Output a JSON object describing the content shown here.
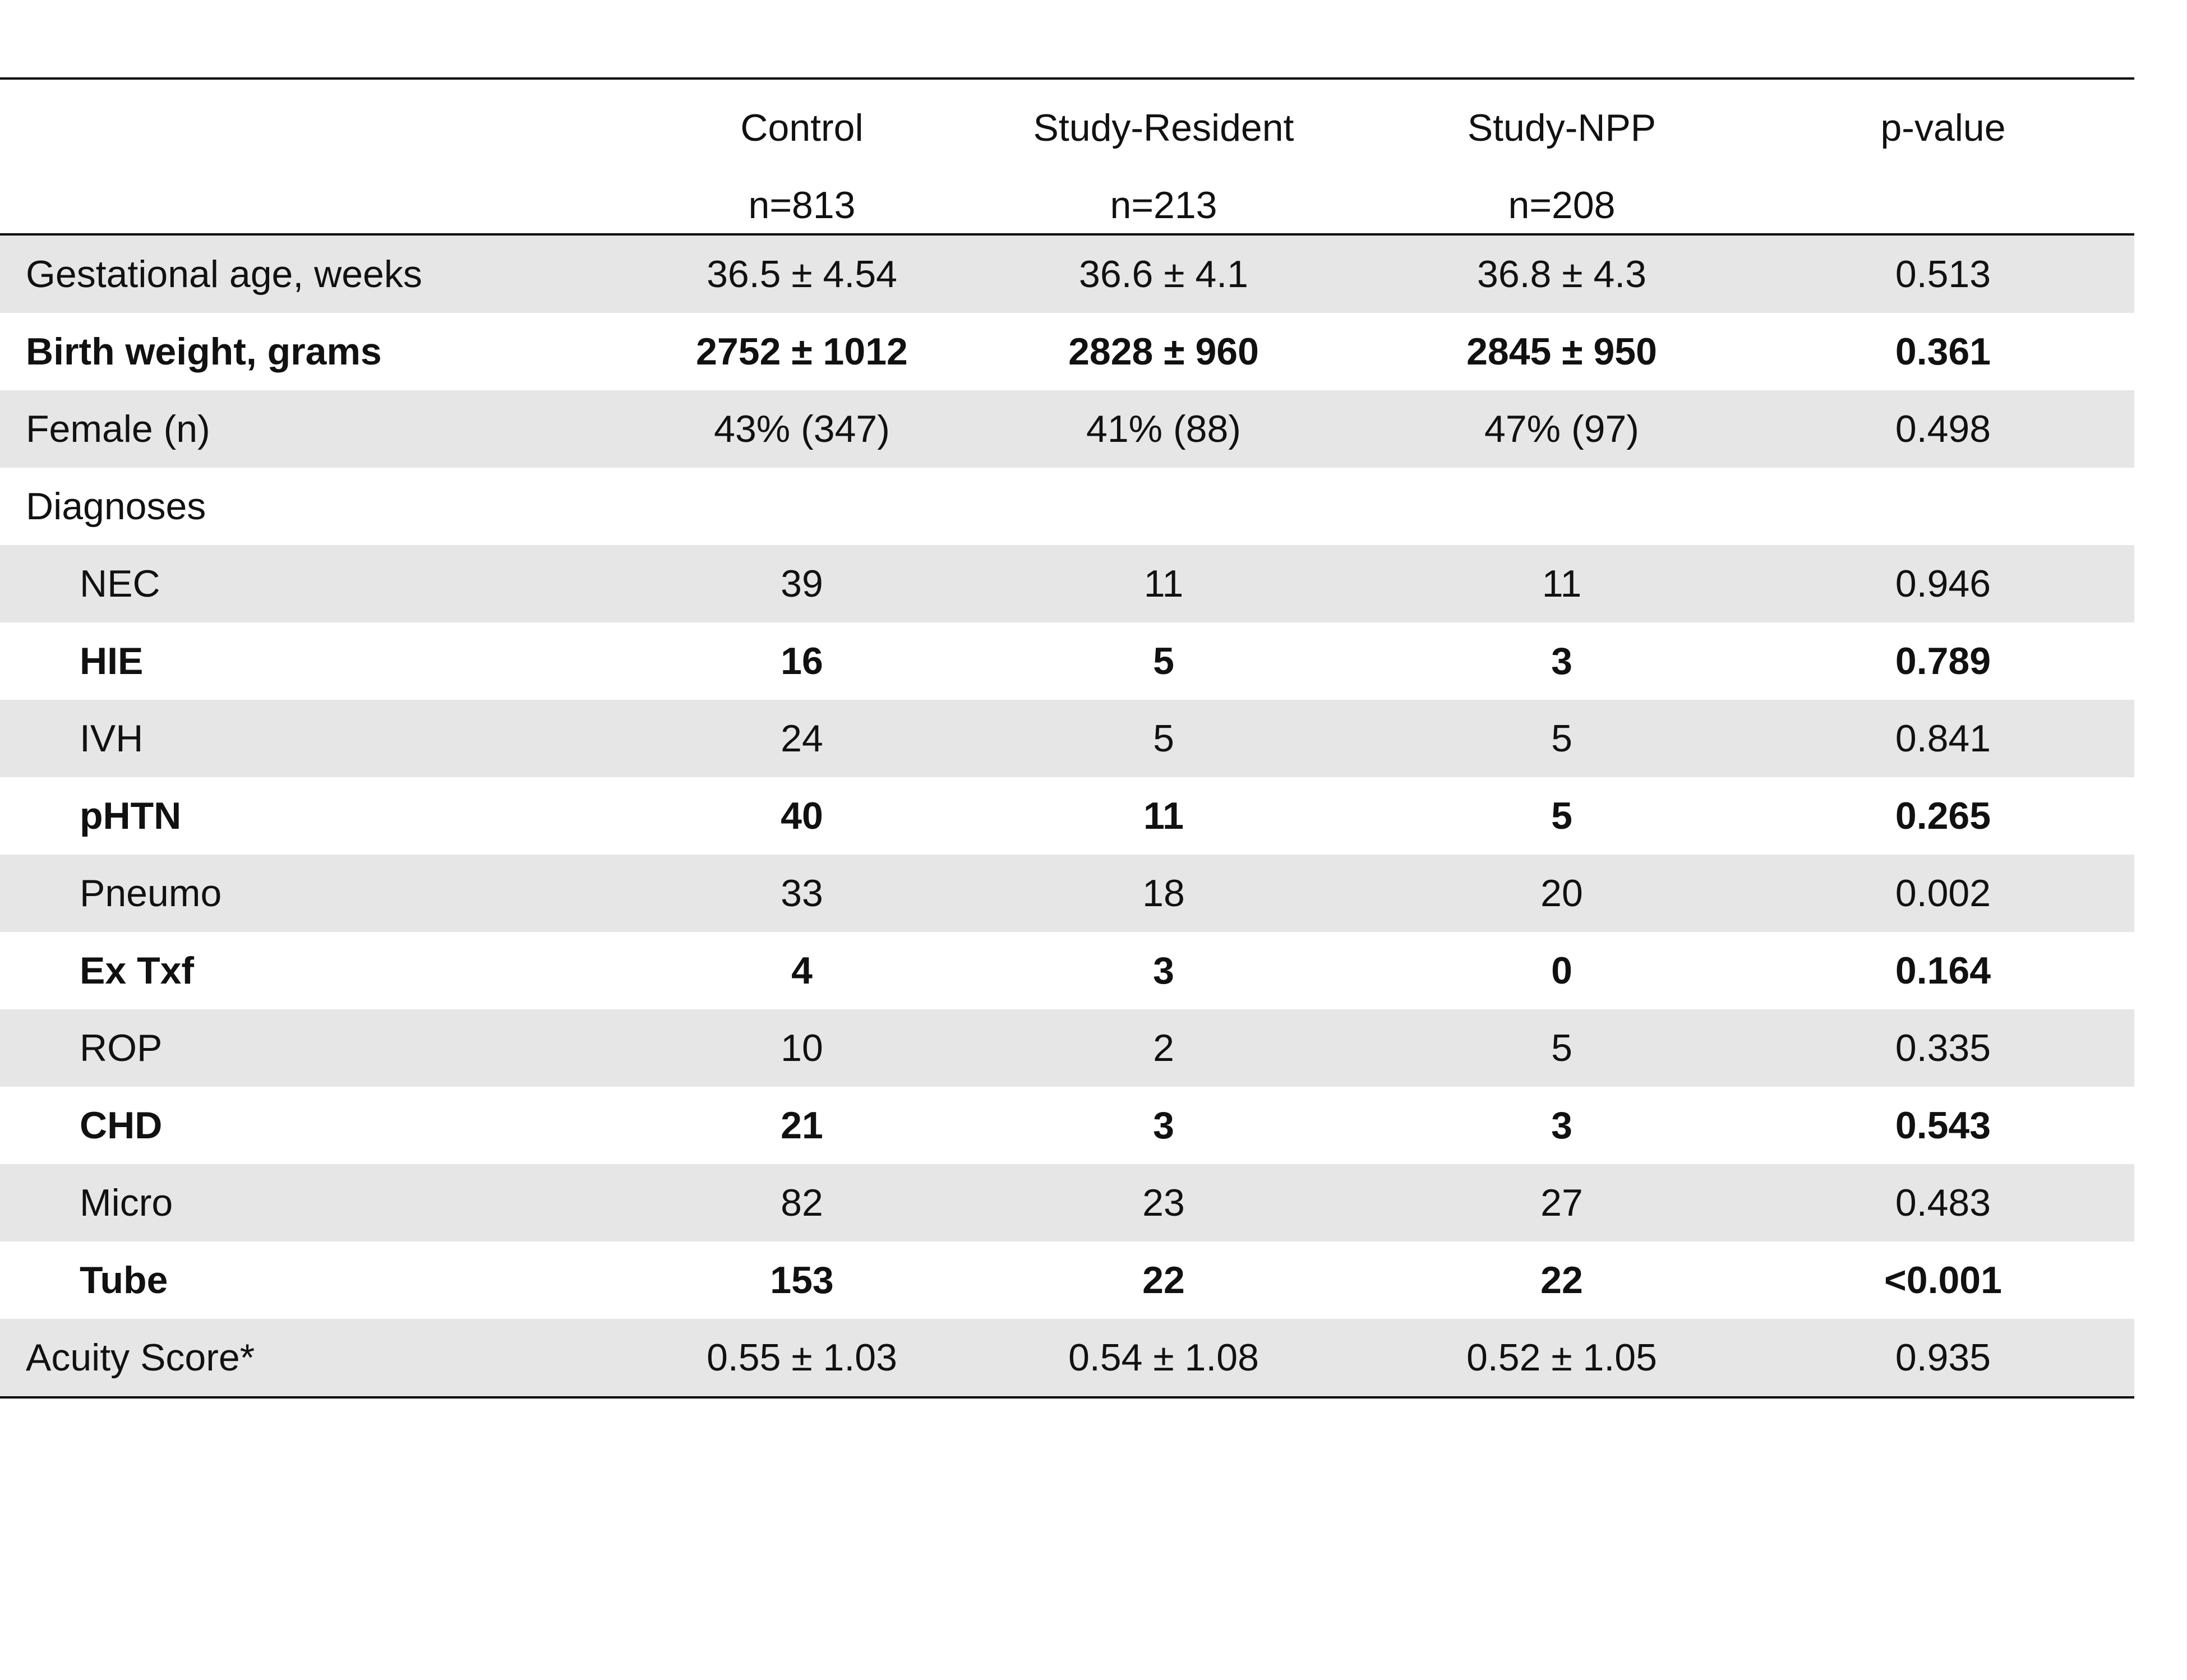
{
  "table": {
    "columns": [
      {
        "name": "Control",
        "n": "n=813"
      },
      {
        "name": "Study-Resident",
        "n": "n=213"
      },
      {
        "name": "Study-NPP",
        "n": "n=208"
      },
      {
        "name": "p-value",
        "n": ""
      }
    ],
    "rows": [
      {
        "label": "Gestational age, weeks",
        "control": "36.5 ± 4.54",
        "resident": "36.6 ± 4.1",
        "npp": "36.8 ± 4.3",
        "p": "0.513"
      },
      {
        "label": "Birth weight, grams",
        "control": "2752 ± 1012",
        "resident": "2828 ± 960",
        "npp": "2845 ± 950",
        "p": "0.361"
      },
      {
        "label": "Female (n)",
        "control": "43% (347)",
        "resident": "41% (88)",
        "npp": "47% (97)",
        "p": "0.498"
      },
      {
        "label": "Diagnoses",
        "control": "",
        "resident": "",
        "npp": "",
        "p": ""
      },
      {
        "label": "NEC",
        "control": "39",
        "resident": "11",
        "npp": "11",
        "p": "0.946"
      },
      {
        "label": "HIE",
        "control": "16",
        "resident": "5",
        "npp": "3",
        "p": "0.789"
      },
      {
        "label": "IVH",
        "control": "24",
        "resident": "5",
        "npp": "5",
        "p": "0.841"
      },
      {
        "label": "pHTN",
        "control": "40",
        "resident": "11",
        "npp": "5",
        "p": "0.265"
      },
      {
        "label": "Pneumo",
        "control": "33",
        "resident": "18",
        "npp": "20",
        "p": "0.002"
      },
      {
        "label": "Ex Txf",
        "control": "4",
        "resident": "3",
        "npp": "0",
        "p": "0.164"
      },
      {
        "label": "ROP",
        "control": "10",
        "resident": "2",
        "npp": "5",
        "p": "0.335"
      },
      {
        "label": "CHD",
        "control": "21",
        "resident": "3",
        "npp": "3",
        "p": "0.543"
      },
      {
        "label": "Micro",
        "control": "82",
        "resident": "23",
        "npp": "27",
        "p": "0.483"
      },
      {
        "label": "Tube",
        "control": "153",
        "resident": "22",
        "npp": "22",
        "p": "<0.001"
      },
      {
        "label": "Acuity Score*",
        "control": "0.55 ± 1.03",
        "resident": "0.54 ± 1.08",
        "npp": "0.52 ± 1.05",
        "p": "0.935"
      }
    ]
  }
}
